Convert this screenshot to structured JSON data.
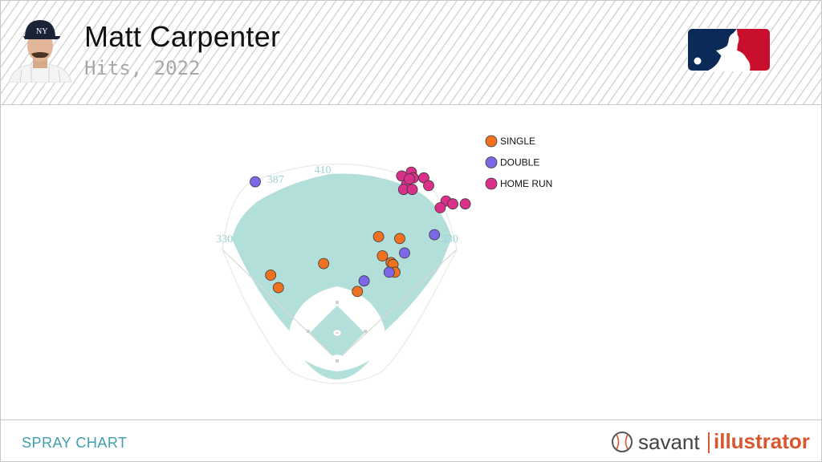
{
  "header": {
    "player_name": "Matt Carpenter",
    "subtitle": "Hits, 2022",
    "avatar_icon": "player-headshot-icon",
    "logo_icon": "mlb-logo-icon"
  },
  "footer": {
    "label": "SPRAY CHART",
    "brand_savant": "savant",
    "brand_illustrator": "illustrator",
    "brand_icon": "baseball-icon"
  },
  "colors": {
    "field": "#b3dfdb",
    "single": "#f07220",
    "double": "#7b68e6",
    "home_run": "#d9318a",
    "footer_accent": "#3f9fae",
    "brand_accent": "#d9572f"
  },
  "chart_data": {
    "type": "scatter",
    "title": "Hits, 2022",
    "xlabel": "",
    "ylabel": "",
    "xlim": [
      0,
      250
    ],
    "ylim": [
      0,
      250
    ],
    "grid": false,
    "legend": "top-right",
    "distance_labels": [
      {
        "text": "387",
        "x": 61,
        "y": 186
      },
      {
        "text": "410",
        "x": 110,
        "y": 196
      },
      {
        "text": "330",
        "x": 8,
        "y": 124
      },
      {
        "text": "330",
        "x": 242,
        "y": 124
      }
    ],
    "series": [
      {
        "name": "SINGLE",
        "color": "#f07220",
        "points": [
          {
            "x": 168,
            "y": 130
          },
          {
            "x": 190,
            "y": 128
          },
          {
            "x": 172,
            "y": 110
          },
          {
            "x": 111,
            "y": 102
          },
          {
            "x": 181,
            "y": 103
          },
          {
            "x": 183,
            "y": 101
          },
          {
            "x": 185,
            "y": 93
          },
          {
            "x": 56,
            "y": 90
          },
          {
            "x": 64,
            "y": 77
          },
          {
            "x": 146,
            "y": 73
          }
        ]
      },
      {
        "name": "DOUBLE",
        "color": "#7b68e6",
        "points": [
          {
            "x": 40,
            "y": 187
          },
          {
            "x": 226,
            "y": 132
          },
          {
            "x": 195,
            "y": 113
          },
          {
            "x": 179,
            "y": 93
          },
          {
            "x": 153,
            "y": 84
          }
        ]
      },
      {
        "name": "HOME RUN",
        "color": "#d9318a",
        "points": [
          {
            "x": 192,
            "y": 193
          },
          {
            "x": 202,
            "y": 197
          },
          {
            "x": 204,
            "y": 191
          },
          {
            "x": 197,
            "y": 184
          },
          {
            "x": 200,
            "y": 190
          },
          {
            "x": 215,
            "y": 191
          },
          {
            "x": 220,
            "y": 183
          },
          {
            "x": 194,
            "y": 179
          },
          {
            "x": 203,
            "y": 179
          },
          {
            "x": 238,
            "y": 167
          },
          {
            "x": 245,
            "y": 164
          },
          {
            "x": 258,
            "y": 164
          },
          {
            "x": 232,
            "y": 160
          }
        ]
      }
    ]
  }
}
